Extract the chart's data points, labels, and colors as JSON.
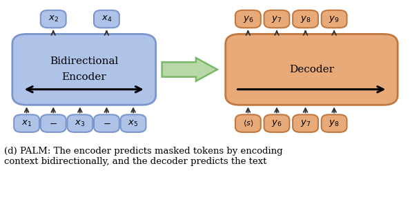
{
  "fig_width": 5.94,
  "fig_height": 2.86,
  "dpi": 100,
  "encoder_fill": "#afc3e8",
  "encoder_edge": "#7b96cc",
  "decoder_fill": "#e8aa78",
  "decoder_edge": "#c07840",
  "tok_enc_fill": "#afc3e8",
  "tok_enc_edge": "#7b96cc",
  "tok_dec_fill": "#e8aa78",
  "tok_dec_edge": "#c07840",
  "green_fill": "#b8d8a8",
  "green_edge": "#78b868",
  "caption": "(d) PALM: The encoder predicts masked tokens by encoding\ncontext bidirectionally, and the decoder predicts the text",
  "caption_fontsize": 9.5
}
